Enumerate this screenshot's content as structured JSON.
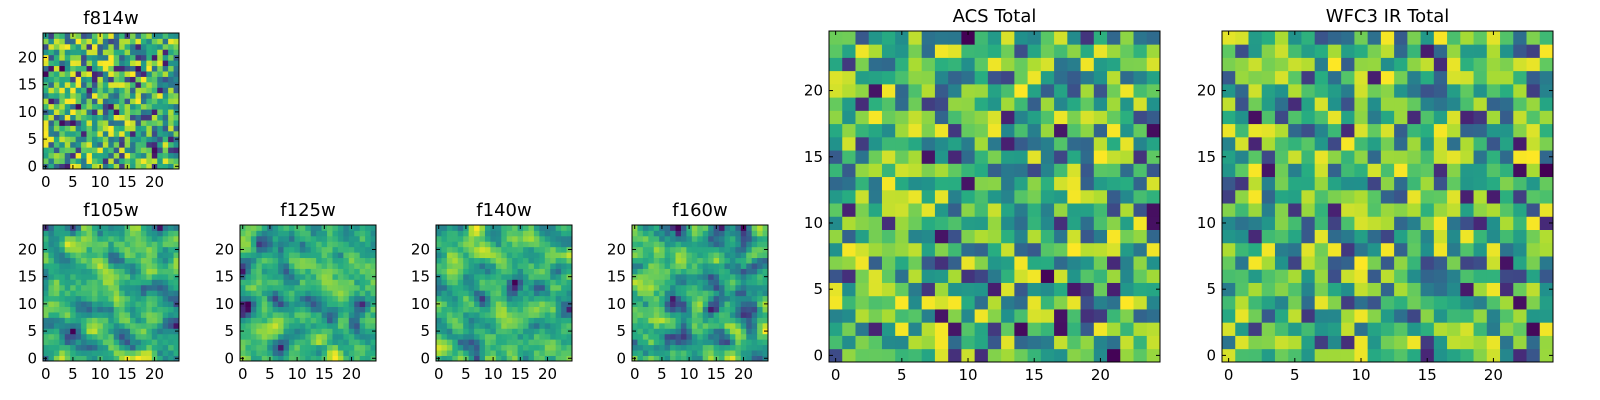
{
  "chart_data": [
    {
      "id": "f814w",
      "type": "heatmap",
      "title": "f814w",
      "grid_size": [
        25,
        25
      ],
      "colormap": "viridis",
      "xlim": [
        0,
        24
      ],
      "ylim": [
        0,
        24
      ],
      "xticks": [
        "0",
        "5",
        "10",
        "15",
        "20"
      ],
      "yticks": [
        "0",
        "5",
        "10",
        "15",
        "20"
      ],
      "seed": 814,
      "texture": "noise"
    },
    {
      "id": "f105w",
      "type": "heatmap",
      "title": "f105w",
      "grid_size": [
        25,
        25
      ],
      "colormap": "viridis",
      "xlim": [
        0,
        24
      ],
      "ylim": [
        0,
        24
      ],
      "xticks": [
        "0",
        "5",
        "10",
        "15",
        "20"
      ],
      "yticks": [
        "0",
        "5",
        "10",
        "15",
        "20"
      ],
      "seed": 105,
      "texture": "smooth"
    },
    {
      "id": "f125w",
      "type": "heatmap",
      "title": "f125w",
      "grid_size": [
        25,
        25
      ],
      "colormap": "viridis",
      "xlim": [
        0,
        24
      ],
      "ylim": [
        0,
        24
      ],
      "xticks": [
        "0",
        "5",
        "10",
        "15",
        "20"
      ],
      "yticks": [
        "0",
        "5",
        "10",
        "15",
        "20"
      ],
      "seed": 125,
      "texture": "smooth"
    },
    {
      "id": "f140w",
      "type": "heatmap",
      "title": "f140w",
      "grid_size": [
        25,
        25
      ],
      "colormap": "viridis",
      "xlim": [
        0,
        24
      ],
      "ylim": [
        0,
        24
      ],
      "xticks": [
        "0",
        "5",
        "10",
        "15",
        "20"
      ],
      "yticks": [
        "0",
        "5",
        "10",
        "15",
        "20"
      ],
      "seed": 140,
      "texture": "smooth"
    },
    {
      "id": "f160w",
      "type": "heatmap",
      "title": "f160w",
      "grid_size": [
        25,
        25
      ],
      "colormap": "viridis",
      "xlim": [
        0,
        24
      ],
      "ylim": [
        0,
        24
      ],
      "xticks": [
        "0",
        "5",
        "10",
        "15",
        "20"
      ],
      "yticks": [
        "0",
        "5",
        "10",
        "15",
        "20"
      ],
      "seed": 160,
      "texture": "smooth"
    },
    {
      "id": "acs_total",
      "type": "heatmap",
      "title": "ACS Total",
      "grid_size": [
        25,
        25
      ],
      "colormap": "viridis",
      "xlim": [
        0,
        24
      ],
      "ylim": [
        0,
        24
      ],
      "xticks": [
        "0",
        "5",
        "10",
        "15",
        "20"
      ],
      "yticks": [
        "0",
        "5",
        "10",
        "15",
        "20"
      ],
      "seed": 901,
      "texture": "noise"
    },
    {
      "id": "wfc3_ir_total",
      "type": "heatmap",
      "title": "WFC3 IR Total",
      "grid_size": [
        25,
        25
      ],
      "colormap": "viridis",
      "xlim": [
        0,
        24
      ],
      "ylim": [
        0,
        24
      ],
      "xticks": [
        "0",
        "5",
        "10",
        "15",
        "20"
      ],
      "yticks": [
        "0",
        "5",
        "10",
        "15",
        "20"
      ],
      "seed": 902,
      "texture": "noise"
    }
  ]
}
